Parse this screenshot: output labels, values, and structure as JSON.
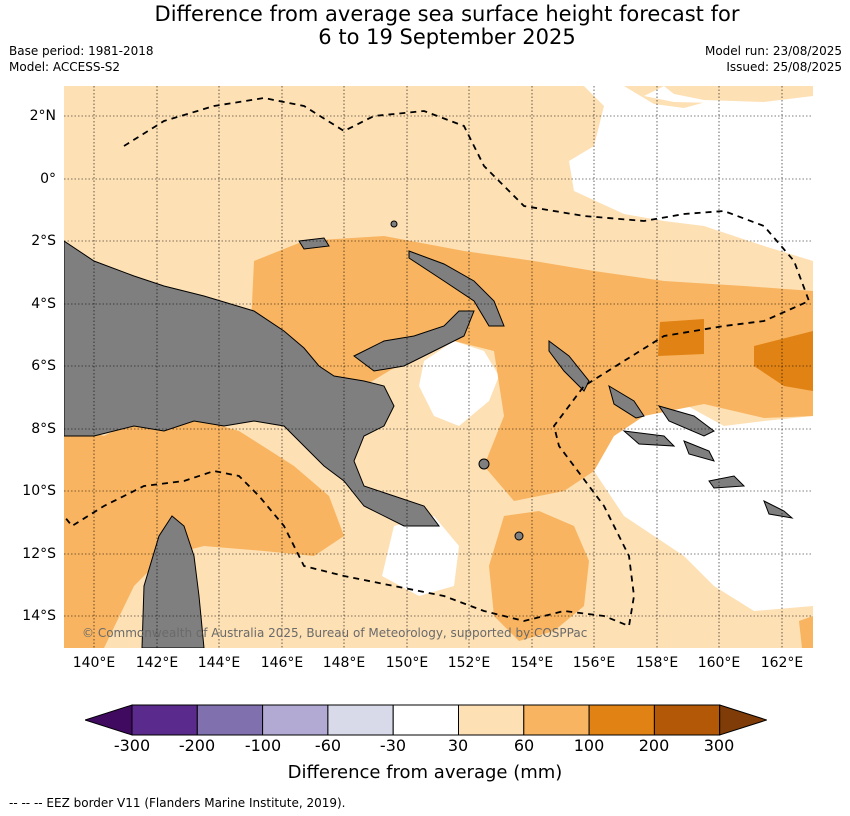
{
  "title_line1": "Difference from average sea surface height forecast for",
  "title_line2": "6 to 19 September 2025",
  "base_period": "Base period: 1981-2018",
  "model": "Model: ACCESS-S2",
  "model_run": "Model run: 23/08/2025",
  "issued": "Issued: 25/08/2025",
  "copyright": "© Commonwealth of Australia 2025, Bureau of Meteorology, supported by COSPPac",
  "lat_labels": [
    "2°N",
    "0°",
    "2°S",
    "4°S",
    "6°S",
    "8°S",
    "10°S",
    "12°S",
    "14°S"
  ],
  "lon_labels": [
    "140°E",
    "142°E",
    "144°E",
    "146°E",
    "148°E",
    "150°E",
    "152°E",
    "154°E",
    "156°E",
    "158°E",
    "160°E",
    "162°E"
  ],
  "colorbar": {
    "label": "Difference from average (mm)",
    "ticks": [
      "-300",
      "-200",
      "-100",
      "-60",
      "-30",
      "30",
      "60",
      "100",
      "200",
      "300"
    ],
    "colors": [
      "#3f0a5f",
      "#5a2a8c",
      "#8070ae",
      "#b2aad2",
      "#d8daea",
      "#ffffff",
      "#fde0b4",
      "#f8b460",
      "#e08214",
      "#b35806",
      "#7f3b08"
    ]
  },
  "footer": "-- -- -- EEZ border V11 (Flanders Marine Institute, 2019)."
}
